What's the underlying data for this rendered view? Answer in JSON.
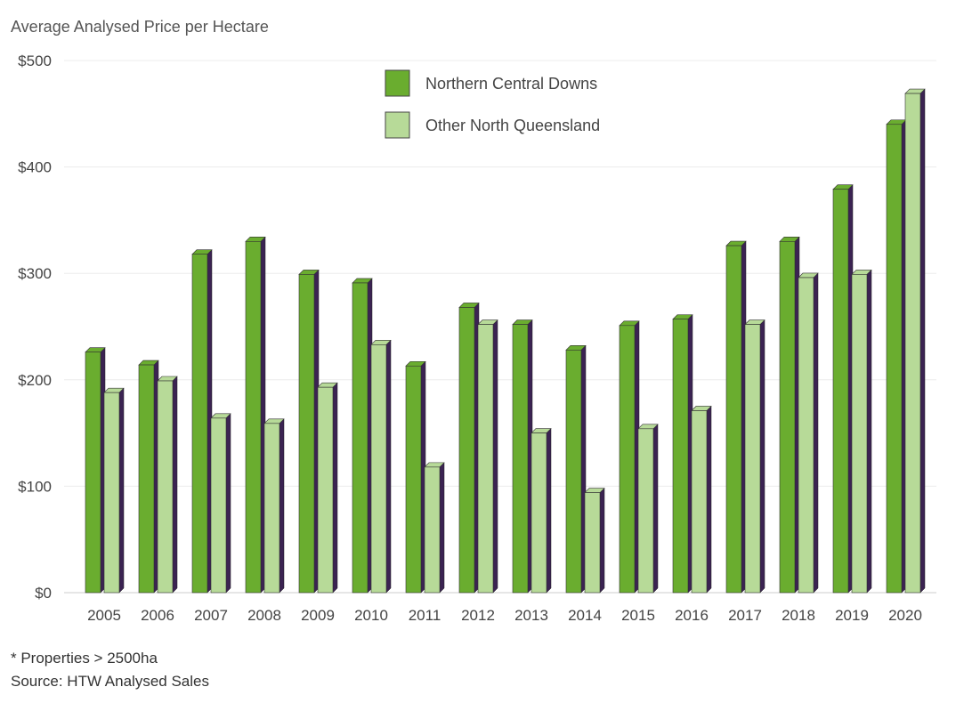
{
  "chart_data": {
    "type": "bar",
    "title": "Average Analysed Price per Hectare",
    "categories": [
      "2005",
      "2006",
      "2007",
      "2008",
      "2009",
      "2010",
      "2011",
      "2012",
      "2013",
      "2014",
      "2015",
      "2016",
      "2017",
      "2018",
      "2019",
      "2020"
    ],
    "series": [
      {
        "name": "Northern Central Downs",
        "color": "#6aad2f",
        "values": [
          226,
          214,
          318,
          330,
          299,
          291,
          213,
          268,
          252,
          228,
          251,
          257,
          326,
          330,
          379,
          440
        ]
      },
      {
        "name": "Other North Queensland",
        "color": "#b7da98",
        "values": [
          188,
          199,
          164,
          159,
          193,
          233,
          118,
          252,
          150,
          94,
          154,
          171,
          252,
          296,
          299,
          469
        ]
      }
    ],
    "y_ticks": [
      "$0",
      "$100",
      "$200",
      "$300",
      "$400",
      "$500"
    ],
    "ylim": [
      0,
      500
    ],
    "grid": true,
    "legend_position": "top-center",
    "depth_color": "#3b2352"
  },
  "footnotes": {
    "note": "* Properties > 2500ha",
    "source": "Source: HTW Analysed Sales"
  }
}
